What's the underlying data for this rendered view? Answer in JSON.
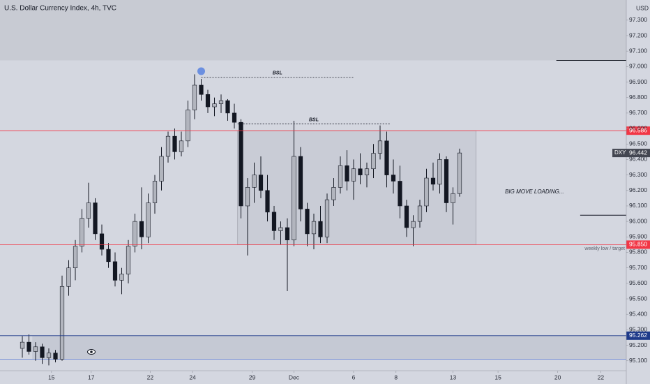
{
  "chart_data": {
    "type": "candlestick",
    "title": "U.S. Dollar Currency Index, 4h, TVC",
    "currency": "USD",
    "symbol": "DXY",
    "last_price": 96.442,
    "up_color": "#b2b5be",
    "down_color": "#131722",
    "ylim": [
      94.95,
      97.43
    ],
    "xlim": [
      -3.37,
      91.16
    ],
    "yticks": [
      {
        "value": 95.1,
        "label": "95.100"
      },
      {
        "value": 95.2,
        "label": "95.200"
      },
      {
        "value": 95.3,
        "label": "95.300"
      },
      {
        "value": 95.4,
        "label": "95.400"
      },
      {
        "value": 95.5,
        "label": "95.500"
      },
      {
        "value": 95.6,
        "label": "95.600"
      },
      {
        "value": 95.7,
        "label": "95.700"
      },
      {
        "value": 95.8,
        "label": "95.800"
      },
      {
        "value": 95.9,
        "label": "95.900"
      },
      {
        "value": 96.0,
        "label": "96.000"
      },
      {
        "value": 96.1,
        "label": "96.100"
      },
      {
        "value": 96.2,
        "label": "96.200"
      },
      {
        "value": 96.3,
        "label": "96.300"
      },
      {
        "value": 96.4,
        "label": "96.400"
      },
      {
        "value": 96.5,
        "label": "96.500"
      },
      {
        "value": 96.6,
        "label": "96.600"
      },
      {
        "value": 96.7,
        "label": "96.700"
      },
      {
        "value": 96.8,
        "label": "96.800"
      },
      {
        "value": 96.9,
        "label": "96.900"
      },
      {
        "value": 97.0,
        "label": "97.000"
      },
      {
        "value": 97.1,
        "label": "97.100"
      },
      {
        "value": 97.2,
        "label": "97.200"
      },
      {
        "value": 97.3,
        "label": "97.300"
      }
    ],
    "xticks": [
      {
        "value": 4.4,
        "label": "15"
      },
      {
        "value": 10.4,
        "label": "17"
      },
      {
        "value": 19.3,
        "label": "22"
      },
      {
        "value": 25.7,
        "label": "24"
      },
      {
        "value": 34.7,
        "label": "29"
      },
      {
        "value": 41,
        "label": "Dec"
      },
      {
        "value": 50,
        "label": "6"
      },
      {
        "value": 56.4,
        "label": "8"
      },
      {
        "value": 65,
        "label": "13"
      },
      {
        "value": 71.8,
        "label": "15"
      },
      {
        "value": 80.8,
        "label": "20"
      },
      {
        "value": 87.3,
        "label": "22"
      }
    ],
    "ohlc": [
      [
        95.18,
        95.26,
        95.12,
        95.22
      ],
      [
        95.22,
        95.27,
        95.14,
        95.16
      ],
      [
        95.16,
        95.22,
        95.1,
        95.19
      ],
      [
        95.19,
        95.21,
        95.08,
        95.12
      ],
      [
        95.12,
        95.18,
        95.07,
        95.15
      ],
      [
        95.15,
        95.17,
        95.09,
        95.11
      ],
      [
        95.11,
        95.65,
        95.1,
        95.58
      ],
      [
        95.58,
        95.75,
        95.52,
        95.7
      ],
      [
        95.7,
        95.88,
        95.62,
        95.84
      ],
      [
        95.84,
        96.08,
        95.8,
        96.02
      ],
      [
        96.02,
        96.25,
        95.96,
        96.12
      ],
      [
        96.12,
        96.15,
        95.88,
        95.92
      ],
      [
        95.92,
        95.98,
        95.78,
        95.82
      ],
      [
        95.82,
        95.86,
        95.7,
        95.74
      ],
      [
        95.74,
        95.8,
        95.58,
        95.62
      ],
      [
        95.62,
        95.7,
        95.53,
        95.66
      ],
      [
        95.66,
        95.88,
        95.6,
        95.84
      ],
      [
        95.84,
        96.05,
        95.8,
        96.0
      ],
      [
        96.0,
        96.22,
        95.82,
        95.9
      ],
      [
        95.9,
        96.18,
        95.86,
        96.12
      ],
      [
        96.12,
        96.3,
        96.05,
        96.26
      ],
      [
        96.26,
        96.48,
        96.2,
        96.42
      ],
      [
        96.42,
        96.58,
        96.38,
        96.55
      ],
      [
        96.55,
        96.6,
        96.4,
        96.45
      ],
      [
        96.45,
        96.58,
        96.42,
        96.52
      ],
      [
        96.52,
        96.78,
        96.48,
        96.72
      ],
      [
        96.72,
        96.95,
        96.66,
        96.88
      ],
      [
        96.88,
        96.92,
        96.78,
        96.82
      ],
      [
        96.82,
        96.85,
        96.7,
        96.74
      ],
      [
        96.74,
        96.8,
        96.68,
        96.76
      ],
      [
        96.76,
        96.82,
        96.7,
        96.78
      ],
      [
        96.78,
        96.79,
        96.65,
        96.7
      ],
      [
        96.7,
        96.76,
        96.6,
        96.64
      ],
      [
        96.64,
        96.66,
        96.02,
        96.1
      ],
      [
        96.1,
        96.28,
        95.78,
        96.22
      ],
      [
        96.22,
        96.38,
        96.12,
        96.3
      ],
      [
        96.3,
        96.42,
        96.15,
        96.2
      ],
      [
        96.2,
        96.3,
        96.0,
        96.06
      ],
      [
        96.06,
        96.1,
        95.88,
        95.94
      ],
      [
        95.94,
        96.0,
        95.85,
        95.96
      ],
      [
        95.96,
        96.02,
        95.55,
        95.88
      ],
      [
        95.88,
        96.65,
        95.84,
        96.42
      ],
      [
        96.42,
        96.48,
        96.0,
        96.08
      ],
      [
        96.08,
        96.12,
        95.84,
        95.92
      ],
      [
        95.92,
        96.05,
        95.82,
        96.0
      ],
      [
        96.0,
        96.1,
        95.86,
        95.9
      ],
      [
        95.9,
        96.18,
        95.86,
        96.14
      ],
      [
        96.14,
        96.28,
        96.1,
        96.22
      ],
      [
        96.22,
        96.42,
        96.18,
        96.36
      ],
      [
        96.36,
        96.46,
        96.2,
        96.26
      ],
      [
        96.26,
        96.4,
        96.14,
        96.34
      ],
      [
        96.34,
        96.44,
        96.24,
        96.3
      ],
      [
        96.3,
        96.38,
        96.22,
        96.34
      ],
      [
        96.34,
        96.5,
        96.28,
        96.44
      ],
      [
        96.44,
        96.62,
        96.4,
        96.52
      ],
      [
        96.52,
        96.58,
        96.22,
        96.3
      ],
      [
        96.3,
        96.4,
        96.18,
        96.26
      ],
      [
        96.26,
        96.36,
        96.02,
        96.1
      ],
      [
        96.1,
        96.14,
        95.9,
        95.96
      ],
      [
        95.96,
        96.04,
        95.84,
        96.0
      ],
      [
        96.0,
        96.14,
        95.96,
        96.1
      ],
      [
        96.1,
        96.34,
        96.06,
        96.28
      ],
      [
        96.28,
        96.38,
        96.2,
        96.24
      ],
      [
        96.24,
        96.44,
        96.18,
        96.4
      ],
      [
        96.4,
        96.42,
        96.06,
        96.12
      ],
      [
        96.12,
        96.22,
        95.98,
        96.18
      ],
      [
        96.18,
        96.47,
        96.16,
        96.442
      ]
    ],
    "levels": [
      {
        "value": 96.586,
        "color": "#f23645"
      },
      {
        "value": 95.85,
        "label": "95.850",
        "color": "#f23645",
        "note": "weekly low / target"
      },
      {
        "value": 95.262,
        "color": "#1e3a8a"
      }
    ],
    "zone_top": {
      "value": 97.04
    },
    "zone_low": {
      "top": 95.262,
      "bottom": 95.11,
      "from": 1.5
    },
    "range_box": {
      "top": 96.586,
      "bottom": 95.85,
      "from": 32.5,
      "to": 68.5
    },
    "short_lines": [
      {
        "value": 97.04,
        "from": 80.6
      },
      {
        "value": 96.04,
        "from": 84.2
      }
    ],
    "bsl": [
      {
        "label": "BSL",
        "value": 96.93,
        "from": 27,
        "to": 50
      },
      {
        "label": "BSL",
        "value": 96.63,
        "from": 32.5,
        "to": 55.5
      }
    ],
    "marker": {
      "x": 27,
      "y": 96.97
    },
    "annotation": {
      "text": "BIG MOVE LOADING...",
      "x": 77.3,
      "y": 96.19
    }
  }
}
